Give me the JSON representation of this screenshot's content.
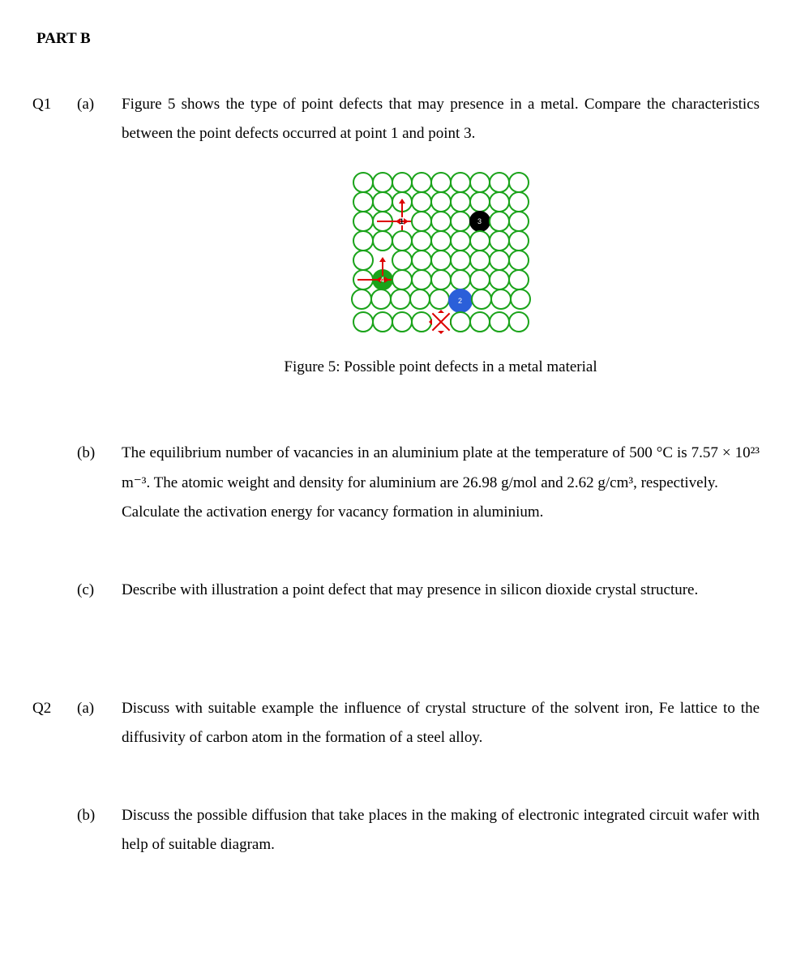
{
  "part_header": "PART B",
  "q1": {
    "label": "Q1",
    "a": {
      "label": "(a)",
      "text": "Figure 5 shows the type of point defects that may presence in a metal. Compare the characteristics between the point defects occurred at point 1 and point 3.",
      "figure_caption": "Figure 5: Possible point defects in a metal material"
    },
    "b": {
      "label": "(b)",
      "text": "The equilibrium number of vacancies in an aluminium plate at the temperature of 500 °C is 7.57 × 10²³ m⁻³. The atomic weight and density for aluminium are 26.98 g/mol and 2.62 g/cm³, respectively.",
      "text2": "Calculate the activation energy for vacancy formation in aluminium."
    },
    "c": {
      "label": "(c)",
      "text": "Describe with illustration a point defect that may presence in silicon dioxide crystal structure."
    }
  },
  "q2": {
    "label": "Q2",
    "a": {
      "label": "(a)",
      "text": "Discuss with suitable example the influence of crystal structure of the solvent iron, Fe lattice to the diffusivity of carbon atom in the formation of a steel alloy."
    },
    "b": {
      "label": "(b)",
      "text": "Discuss the possible diffusion that take places in the making of electronic integrated circuit wafer with help of suitable diagram."
    }
  },
  "figure": {
    "lattice": {
      "rows": 8,
      "cols": 9,
      "atom_color": "#1aa31a",
      "defect_labels": {
        "vacancy": "1",
        "substitutional_large": "2",
        "interstitial": "3",
        "substitutional_green": "4"
      },
      "specials": [
        {
          "row": 2,
          "col": 2,
          "type": "vacancy",
          "label": "1"
        },
        {
          "row": 2,
          "col": 6,
          "type": "black",
          "label": "3"
        },
        {
          "row": 4,
          "col": 1,
          "type": "missing"
        },
        {
          "row": 5,
          "col": 1,
          "type": "green-fill",
          "label": "4"
        },
        {
          "row": 6,
          "col": 5,
          "type": "blue",
          "label": "2"
        },
        {
          "row": 7,
          "col": 4,
          "type": "collapse"
        }
      ]
    }
  }
}
